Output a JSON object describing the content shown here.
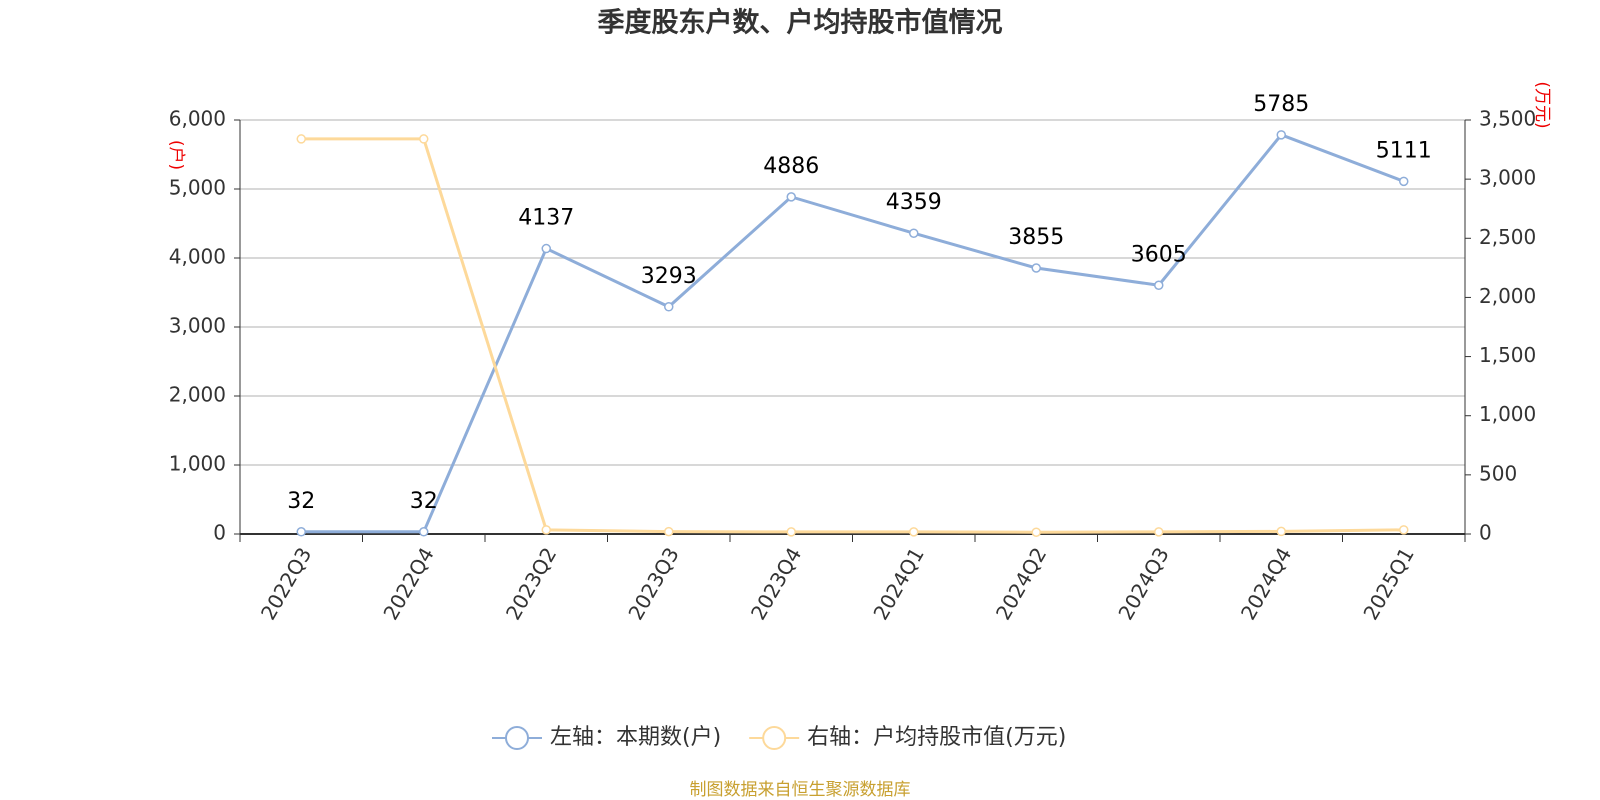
{
  "chart_data": {
    "type": "line",
    "title": "季度股东户数、户均持股市值情况",
    "ylabel": "(户)",
    "y2label": "(万元)",
    "categories": [
      "2022Q3",
      "2022Q4",
      "2023Q2",
      "2023Q3",
      "2023Q4",
      "2024Q1",
      "2024Q2",
      "2024Q3",
      "2024Q4",
      "2025Q1"
    ],
    "series": [
      {
        "name": "左轴：本期数(户)",
        "color": "#8eadd9",
        "values": [
          32,
          32,
          4137,
          3293,
          4886,
          4359,
          3855,
          3605,
          5785,
          5111
        ]
      },
      {
        "name": "右轴：户均持股市值(万元)",
        "color": "#fdd99a",
        "axis": "y2",
        "values": [
          3340,
          3340,
          35,
          20,
          18,
          18,
          15,
          18,
          22,
          35
        ]
      }
    ],
    "ylim": [
      0,
      6000
    ],
    "yticks": [
      0,
      {
        "value": 1000,
        "label": "1,000"
      },
      {
        "value": 2000,
        "label": "2,000"
      },
      {
        "value": 3000,
        "label": "3,000"
      },
      {
        "value": 4000,
        "label": "4,000"
      },
      {
        "value": 5000,
        "label": "5,000"
      },
      {
        "value": 6000,
        "label": "6,000"
      }
    ],
    "y2lim": [
      0,
      3500
    ],
    "y2ticks": [
      0,
      500,
      {
        "value": 1000,
        "label": "1,000"
      },
      {
        "value": 1500,
        "label": "1,500"
      },
      {
        "value": 2000,
        "label": "2,000"
      },
      {
        "value": 2500,
        "label": "2,500"
      },
      {
        "value": 3000,
        "label": "3,000"
      },
      {
        "value": 3500,
        "label": "3,500"
      }
    ],
    "grid": true,
    "source": "制图数据来自恒生聚源数据库"
  }
}
